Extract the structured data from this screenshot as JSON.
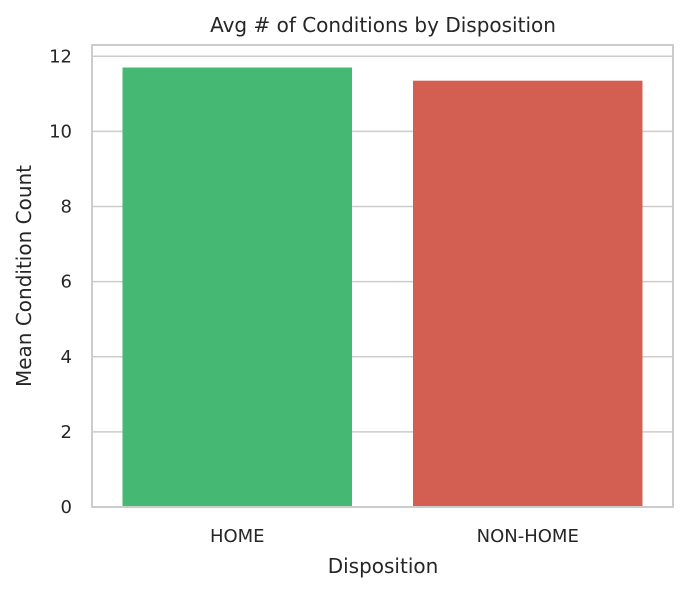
{
  "chart_data": {
    "type": "bar",
    "title": "Avg # of Conditions by Disposition",
    "xlabel": "Disposition",
    "ylabel": "Mean Condition Count",
    "categories": [
      "HOME",
      "NON-HOME"
    ],
    "values": [
      11.7,
      11.35
    ],
    "colors": [
      "#45b873",
      "#d35f52"
    ],
    "ylim": [
      0,
      12.3
    ],
    "yticks": [
      0,
      2,
      4,
      6,
      8,
      10,
      12
    ],
    "ytick_labels": [
      "0",
      "2",
      "4",
      "6",
      "8",
      "10",
      "12"
    ],
    "grid": "horizontal",
    "legend": "none"
  }
}
